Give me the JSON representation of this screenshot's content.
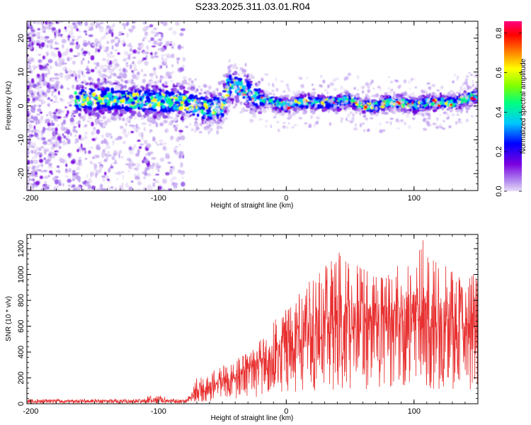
{
  "chart_data": [
    {
      "type": "heatmap",
      "title": "S233.2025.311.03.01.R04",
      "xlabel": "Height of straight line (km)",
      "ylabel": "Frequency (Hz)",
      "xlim": [
        -203,
        150
      ],
      "ylim": [
        -25,
        25
      ],
      "xticks": [
        {
          "value": -200,
          "label": "-200"
        },
        {
          "value": -100,
          "label": "-100"
        },
        {
          "value": 0,
          "label": "0"
        },
        {
          "value": 100,
          "label": "100"
        }
      ],
      "yticks": [
        {
          "value": -20,
          "label": "-20"
        },
        {
          "value": -10,
          "label": "-10"
        },
        {
          "value": 0,
          "label": "0"
        },
        {
          "value": 10,
          "label": "10"
        },
        {
          "value": 20,
          "label": "20"
        }
      ],
      "colorbar": {
        "label": "Normalized spectral amplitude",
        "range": [
          0,
          0.86
        ],
        "ticks": [
          {
            "value": 0.0,
            "label": "0.0"
          },
          {
            "value": 0.2,
            "label": "0.2"
          },
          {
            "value": 0.4,
            "label": "0.4"
          },
          {
            "value": 0.6,
            "label": "0.6"
          },
          {
            "value": 0.8,
            "label": "0.8"
          }
        ],
        "colormap": [
          "#e8ddf7",
          "#7b00e0",
          "#0000ff",
          "#00c8ff",
          "#00ff80",
          "#80ff00",
          "#ffff00",
          "#ff8000",
          "#ff0000",
          "#ff0080"
        ]
      },
      "ridge": {
        "description_x": [
          -160,
          -140,
          -120,
          -100,
          -80,
          -70,
          -60,
          -50,
          -45,
          -40,
          -35,
          -30,
          -25,
          -20,
          -10,
          0,
          10,
          20,
          30,
          40,
          50,
          60,
          70,
          80,
          90,
          100,
          110,
          120,
          130,
          140,
          150
        ],
        "frequency": [
          2,
          2,
          1.5,
          1.5,
          1,
          0,
          -1,
          0,
          6,
          6,
          5,
          4,
          3,
          2,
          1,
          0,
          1,
          1,
          1,
          1,
          2,
          0,
          0,
          1,
          1,
          0,
          1,
          1,
          1,
          2,
          3
        ]
      },
      "scatter_region": {
        "x_start": -203,
        "x_end": -80,
        "frequency_range": [
          -25,
          25
        ]
      }
    },
    {
      "type": "line",
      "xlabel": "Height of straight line (km)",
      "ylabel": "SNR (10 * v/v)",
      "xlim": [
        -203,
        150
      ],
      "ylim": [
        0,
        1310
      ],
      "line_color": "#e83030",
      "xticks": [
        {
          "value": -200,
          "label": "-200"
        },
        {
          "value": -100,
          "label": "-100"
        },
        {
          "value": 0,
          "label": "0"
        },
        {
          "value": 100,
          "label": "100"
        }
      ],
      "yticks": [
        {
          "value": 0,
          "label": "0"
        },
        {
          "value": 200,
          "label": "200"
        },
        {
          "value": 400,
          "label": "400"
        },
        {
          "value": 600,
          "label": "600"
        },
        {
          "value": 800,
          "label": "800"
        },
        {
          "value": 1000,
          "label": "1000"
        },
        {
          "value": 1200,
          "label": "1200"
        }
      ],
      "envelope_x": [
        -203,
        -150,
        -100,
        -80,
        -70,
        -60,
        -50,
        -40,
        -30,
        -20,
        -10,
        0,
        10,
        20,
        30,
        40,
        50,
        60,
        70,
        80,
        90,
        100,
        110,
        120,
        130,
        140,
        150
      ],
      "envelope_baseline": [
        15,
        15,
        20,
        20,
        60,
        100,
        150,
        180,
        230,
        260,
        300,
        380,
        420,
        460,
        520,
        540,
        560,
        550,
        560,
        570,
        540,
        560,
        560,
        550,
        540,
        540,
        560
      ],
      "envelope_peak": [
        40,
        40,
        70,
        40,
        200,
        250,
        300,
        340,
        400,
        500,
        640,
        750,
        850,
        1000,
        1100,
        1210,
        1100,
        1060,
        1020,
        1000,
        1150,
        1260,
        1310,
        1100,
        1050,
        1000,
        1000
      ]
    }
  ]
}
